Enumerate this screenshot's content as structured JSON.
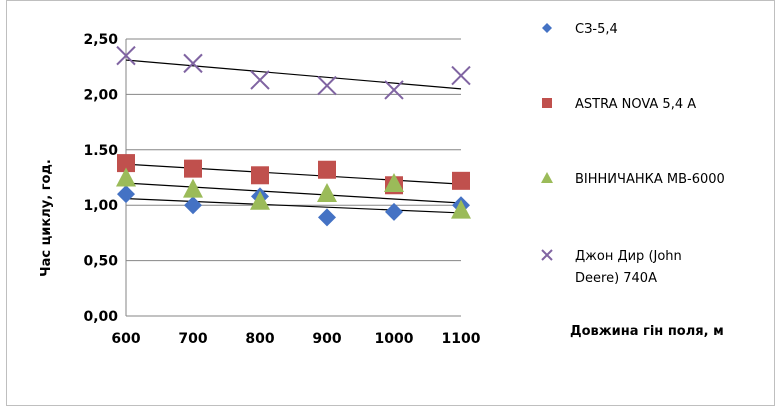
{
  "chart_data": {
    "type": "scatter",
    "title": "",
    "xlabel": "Довжина гін поля, м",
    "ylabel": "Час циклу, год.",
    "x": [
      600,
      700,
      800,
      900,
      1000,
      1100
    ],
    "xlim": [
      600,
      1100
    ],
    "ylim": [
      0,
      2.5
    ],
    "yticks": [
      "0,00",
      "0,50",
      "1,00",
      "1.50",
      "2,00",
      "2,50"
    ],
    "xticks": [
      "600",
      "700",
      "800",
      "900",
      "1000",
      "1100"
    ],
    "grid": true,
    "legend_position": "right",
    "trendlines": true,
    "series": [
      {
        "name": "СЗ-5,4",
        "marker": "diamond",
        "color": "#4472c4",
        "values": [
          1.1,
          1.0,
          1.08,
          0.89,
          0.94,
          1.0
        ],
        "trend": [
          1.06,
          0.93
        ]
      },
      {
        "name": "ASTRA NOVA 5,4 A",
        "marker": "square",
        "color": "#c0504d",
        "values": [
          1.38,
          1.33,
          1.27,
          1.32,
          1.18,
          1.22
        ],
        "trend": [
          1.37,
          1.19
        ]
      },
      {
        "name": "ВІННИЧАНКА МВ-6000",
        "marker": "triangle",
        "color": "#9bbb59",
        "values": [
          1.25,
          1.15,
          1.04,
          1.11,
          1.2,
          0.96
        ],
        "trend": [
          1.2,
          1.02
        ]
      },
      {
        "name": "Джон Дир (John Deere) 740A",
        "marker": "x",
        "color": "#8064a2",
        "values": [
          2.35,
          2.28,
          2.13,
          2.08,
          2.04,
          2.17
        ],
        "trend": [
          2.31,
          2.05
        ]
      }
    ]
  },
  "legend_lines": [
    [
      "СЗ-5,4"
    ],
    [
      "ASTRA NOVA 5,4 A"
    ],
    [
      "ВІННИЧАНКА МВ-6000"
    ],
    [
      "Джон Дир (John",
      "Deere) 740A"
    ]
  ]
}
